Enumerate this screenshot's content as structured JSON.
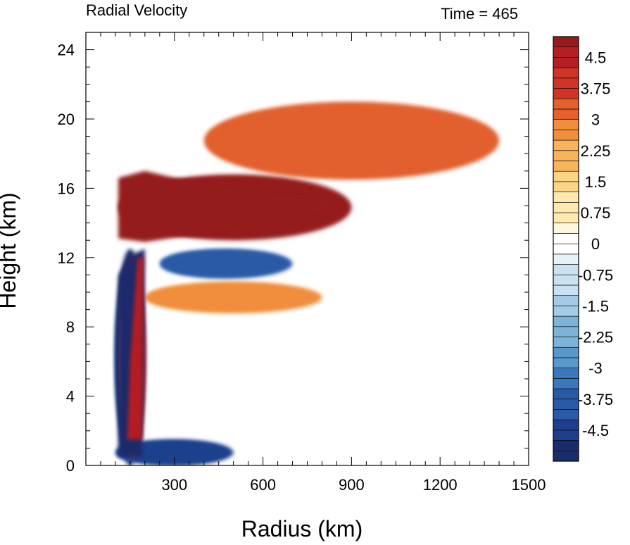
{
  "chart_data": {
    "type": "heatmap",
    "title_left": "Radial Velocity",
    "title_right": "Time = 465",
    "xlabel": "Radius (km)",
    "ylabel": "Height (km)",
    "xlim": [
      0,
      1500
    ],
    "ylim": [
      0,
      25
    ],
    "xticks": [
      300,
      600,
      900,
      1200,
      1500
    ],
    "yticks": [
      0,
      4,
      8,
      12,
      16,
      20,
      24
    ],
    "colorbar": {
      "levels": [
        -5.25,
        -5,
        -4.75,
        -4.5,
        -4.25,
        -4,
        -3.75,
        -3.5,
        -3.25,
        -3,
        -2.75,
        -2.5,
        -2.25,
        -2,
        -1.75,
        -1.5,
        -1.25,
        -1,
        -0.75,
        -0.5,
        -0.25,
        0,
        0.25,
        0.5,
        0.75,
        1,
        1.25,
        1.5,
        1.75,
        2,
        2.25,
        2.5,
        2.75,
        3,
        3.25,
        3.5,
        3.75,
        4,
        4.25,
        4.5,
        4.75,
        5
      ],
      "labels": [
        "4.5",
        "3.75",
        "3",
        "2.25",
        "1.5",
        "0.75",
        "0",
        "-0.75",
        "-1.5",
        "-2.25",
        "-3",
        "-3.75",
        "-4.5"
      ],
      "label_values": [
        4.5,
        3.75,
        3,
        2.25,
        1.5,
        0.75,
        0,
        -0.75,
        -1.5,
        -2.25,
        -3,
        -3.75,
        -4.5
      ],
      "colors_negative": [
        "#1b2c6b",
        "#1f3f8c",
        "#2a5aa6",
        "#3a78ba",
        "#5a97cb",
        "#7db3d9",
        "#a4cbe5",
        "#c9e1f0",
        "#e6f1f8"
      ],
      "colors_positive": [
        "#fdf7df",
        "#fde9b0",
        "#fcd486",
        "#f8b45a",
        "#f08e3c",
        "#e2612d",
        "#cf3429",
        "#b51f24",
        "#951b1c"
      ],
      "background": "#ffffff"
    },
    "features": [
      {
        "name": "upper outflow jet",
        "sign": "positive",
        "r": [
          110,
          900
        ],
        "z": [
          13,
          16.8
        ],
        "peak": 5
      },
      {
        "name": "inner inflow column",
        "sign": "negative",
        "r": [
          100,
          200
        ],
        "z": [
          0,
          12.5
        ],
        "peak": -5
      },
      {
        "name": "boundary layer inflow",
        "sign": "negative",
        "r": [
          100,
          500
        ],
        "z": [
          0,
          1.5
        ],
        "peak": -4.5
      },
      {
        "name": "mid-level inflow band",
        "sign": "negative",
        "r": [
          250,
          700
        ],
        "z": [
          10.8,
          12.5
        ],
        "peak": -4
      },
      {
        "name": "mid-level outflow band",
        "sign": "positive",
        "r": [
          200,
          800
        ],
        "z": [
          8.8,
          10.6
        ],
        "peak": 2.5
      },
      {
        "name": "eyewall outflow strip",
        "sign": "positive",
        "r": [
          120,
          200
        ],
        "z": [
          0.5,
          12
        ],
        "peak": 4.5
      },
      {
        "name": "upper outflow layer",
        "sign": "positive",
        "r": [
          400,
          1400
        ],
        "z": [
          16.5,
          21
        ],
        "peak": 3
      }
    ]
  }
}
